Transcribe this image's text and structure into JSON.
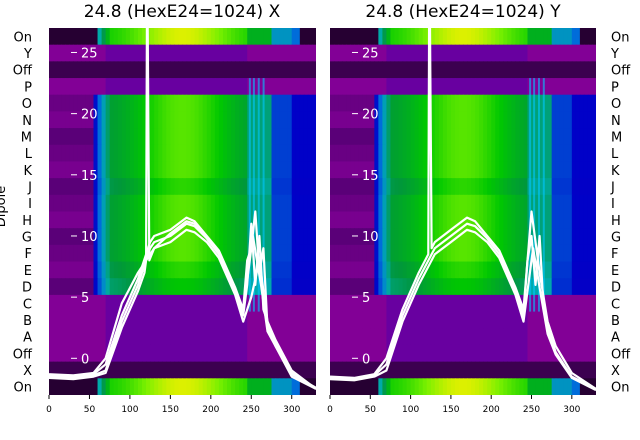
{
  "chart_data": [
    {
      "type": "heatmap",
      "title": "24.8 (HexE24=1024) X",
      "ylabel": "Dipole",
      "xlim": [
        0,
        330
      ],
      "xticks": [
        0,
        50,
        100,
        150,
        200,
        250,
        300
      ],
      "row_labels": [
        "On",
        "Y",
        "Off",
        "P",
        "O",
        "N",
        "M",
        "L",
        "K",
        "J",
        "I",
        "H",
        "G",
        "F",
        "E",
        "D",
        "C",
        "B",
        "A",
        "Off",
        "X",
        "On"
      ],
      "overlay": {
        "ylim": [
          -3,
          27
        ],
        "yticks": [
          0,
          5,
          10,
          15,
          20,
          25
        ],
        "line_color": "#ffffff"
      },
      "series": [
        {
          "x": [
            0,
            30,
            55,
            70,
            90,
            110,
            120,
            125,
            130,
            150,
            170,
            180,
            195,
            210,
            230,
            240,
            245,
            250,
            255,
            260,
            265,
            270,
            280,
            300,
            330
          ],
          "y": [
            -1.5,
            -1.6,
            -1.4,
            -1,
            3,
            6,
            8,
            9,
            9.5,
            10,
            11,
            10.8,
            9.8,
            8.5,
            5.5,
            3.5,
            6,
            11,
            6,
            10,
            4,
            3,
            1.5,
            -1,
            -2.5
          ]
        },
        {
          "x": [
            0,
            30,
            55,
            70,
            90,
            110,
            120,
            125,
            130,
            150,
            170,
            180,
            195,
            210,
            230,
            240,
            245,
            250,
            255,
            260,
            265,
            270,
            280,
            300,
            330
          ],
          "y": [
            -1.4,
            -1.5,
            -1.3,
            -0.5,
            3.5,
            6.5,
            8.5,
            9.5,
            10,
            10.5,
            11.5,
            11.2,
            10,
            8.8,
            5.8,
            4,
            8,
            9,
            12,
            7,
            9,
            2.5,
            1,
            -1.5,
            -2.5
          ]
        },
        {
          "x": [
            0,
            30,
            55,
            70,
            90,
            110,
            118,
            120,
            121,
            122,
            124,
            130,
            150,
            170,
            180,
            195,
            210,
            230,
            240,
            250,
            260,
            270,
            280,
            300,
            330
          ],
          "y": [
            -1.6,
            -1.7,
            -1.5,
            -1.2,
            2.5,
            5.5,
            7,
            8,
            27,
            27,
            8,
            9,
            9.5,
            10.5,
            10.3,
            9.5,
            8.2,
            5.2,
            3,
            5,
            8,
            3,
            1.2,
            -1.2,
            -2.5
          ]
        },
        {
          "x": [
            0,
            30,
            55,
            70,
            90,
            110,
            130,
            150,
            170,
            180,
            195,
            210,
            230,
            240,
            252,
            262,
            270,
            280,
            300,
            330
          ],
          "y": [
            -1.3,
            -1.4,
            -1.2,
            0,
            4.5,
            7,
            9,
            10.2,
            11.2,
            11,
            9.9,
            8.6,
            5.6,
            3.8,
            10,
            6,
            2.2,
            1,
            -1.3,
            -2.4
          ]
        }
      ]
    },
    {
      "type": "heatmap",
      "title": "24.8 (HexE24=1024) Y",
      "ylabel": "",
      "xlim": [
        0,
        330
      ],
      "xticks": [
        0,
        50,
        100,
        150,
        200,
        250,
        300
      ],
      "row_labels": [
        "On",
        "Y",
        "Off",
        "P",
        "O",
        "N",
        "M",
        "L",
        "K",
        "J",
        "I",
        "H",
        "G",
        "F",
        "E",
        "D",
        "C",
        "B",
        "A",
        "Off",
        "X",
        "On"
      ],
      "overlay": {
        "ylim": [
          -3,
          27
        ],
        "yticks": [
          0,
          5,
          10,
          15,
          20,
          25
        ],
        "line_color": "#ffffff"
      },
      "series": [
        {
          "x": [
            0,
            30,
            55,
            70,
            90,
            110,
            130,
            150,
            170,
            180,
            195,
            210,
            230,
            240,
            245,
            250,
            255,
            260,
            265,
            270,
            280,
            300,
            330
          ],
          "y": [
            -1.6,
            -1.7,
            -1.4,
            -0.5,
            3.5,
            6.5,
            9,
            10,
            11,
            10.8,
            9.8,
            8.5,
            5.5,
            3.5,
            8,
            10,
            6,
            10,
            4,
            2.5,
            0.5,
            -1.5,
            -2.5
          ]
        },
        {
          "x": [
            0,
            30,
            55,
            70,
            90,
            110,
            122,
            123,
            124,
            126,
            130,
            150,
            170,
            180,
            195,
            210,
            230,
            240,
            250,
            260,
            270,
            280,
            300,
            330
          ],
          "y": [
            -1.5,
            -1.6,
            -1.3,
            0,
            4,
            7,
            8.5,
            27,
            27,
            9,
            9.5,
            10.5,
            11.5,
            11.2,
            10,
            8.8,
            5.8,
            4,
            12,
            7,
            3,
            1,
            -1.2,
            -2.5
          ]
        },
        {
          "x": [
            0,
            30,
            55,
            70,
            90,
            110,
            130,
            150,
            170,
            180,
            195,
            210,
            230,
            240,
            252,
            262,
            270,
            280,
            300,
            330
          ],
          "y": [
            -1.7,
            -1.8,
            -1.5,
            -1,
            3,
            6,
            8.5,
            9.5,
            10.5,
            10.3,
            9.5,
            8.2,
            5.2,
            3,
            9,
            5,
            2,
            0.3,
            -1.6,
            -2.6
          ]
        }
      ]
    }
  ]
}
